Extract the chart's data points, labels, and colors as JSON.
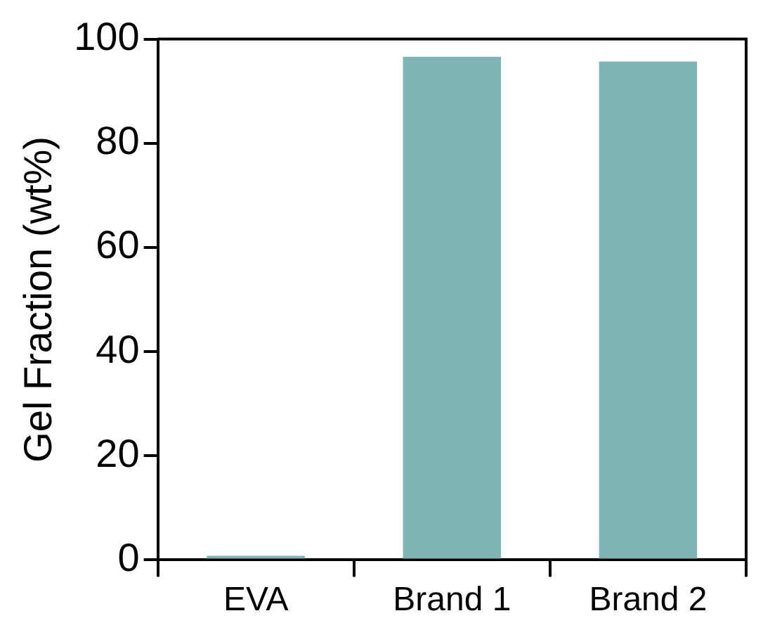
{
  "chart_data": {
    "type": "bar",
    "ylabel": "Gel Fraction (wt%)",
    "categories": [
      "EVA",
      "Brand 1",
      "Brand 2"
    ],
    "values": [
      0.8,
      96.6,
      95.7
    ],
    "color": "#80b3b3",
    "ylim": [
      0,
      100
    ],
    "yticks": [
      0,
      20,
      40,
      60,
      80,
      100
    ],
    "grid": false,
    "legend": false
  }
}
